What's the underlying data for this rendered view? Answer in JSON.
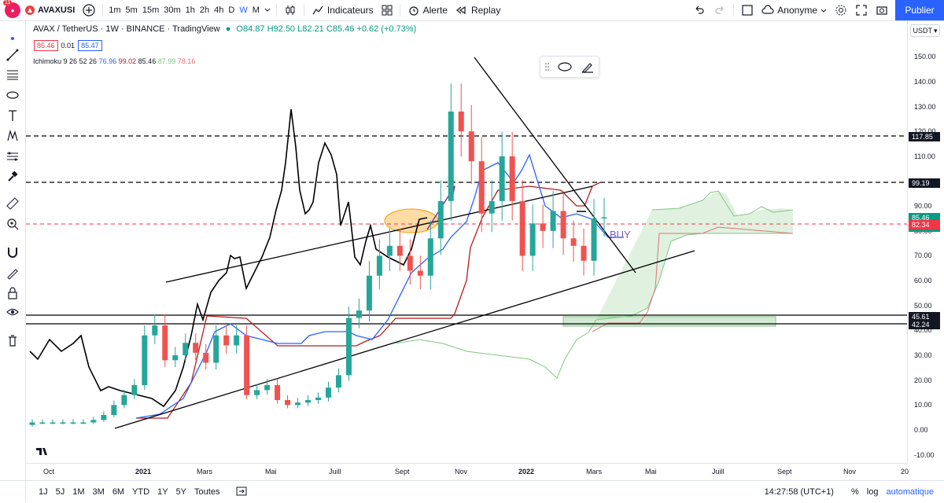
{
  "toolbar": {
    "avatar_badge": "11",
    "symbol": "AVAXUSI",
    "timeframes": [
      "1m",
      "5m",
      "15m",
      "30m",
      "1h",
      "2h",
      "4h",
      "D",
      "W",
      "M"
    ],
    "active_timeframe": "W",
    "indicators_label": "Indicateurs",
    "alert_label": "Alerte",
    "replay_label": "Replay",
    "account_label": "Anonyme",
    "publish_label": "Publier"
  },
  "legend": {
    "pair": "AVAX / TetherUS",
    "interval": "1W",
    "exchange": "BINANCE",
    "source": "TradingView",
    "open": "O84.87",
    "high": "H92.50",
    "low": "L82.21",
    "close": "C85.46",
    "change": "+0.62 (+0.73%)",
    "sell_price": "85.46",
    "spread": "0.01",
    "buy_price": "85.47"
  },
  "ichimoku": {
    "label": "Ichimoku 9 26 52 26",
    "v1": "76.96",
    "v2": "99.02",
    "v3": "85.46",
    "v4": "87.99",
    "v5": "78.16"
  },
  "axis": {
    "currency": "USDT",
    "y_labels": [
      "150.00",
      "140.00",
      "130.00",
      "120.00",
      "110.00",
      "100.00",
      "90.00",
      "80.00",
      "70.00",
      "60.00",
      "50.00",
      "40.00",
      "30.00",
      "20.00",
      "10.00",
      "0.00",
      "-10.00"
    ],
    "x_labels": [
      "Oct",
      "2021",
      "Mars",
      "Mai",
      "Juill",
      "Sept",
      "Nov",
      "2022",
      "Mars",
      "Mai",
      "Juill",
      "Sept",
      "Nov",
      "20"
    ]
  },
  "price_labels": [
    {
      "text": "117.85",
      "color": "#131722"
    },
    {
      "text": "99.19",
      "color": "#131722"
    },
    {
      "text": "85.46",
      "color": "#089981"
    },
    {
      "text": "3d 11h",
      "color": "#089981"
    },
    {
      "text": "82.34",
      "color": "#f23645"
    },
    {
      "text": "45.61",
      "color": "#131722"
    },
    {
      "text": "42.24",
      "color": "#131722"
    }
  ],
  "chart_data": {
    "type": "candlestick",
    "annotation": "BUY",
    "horizontal_levels": [
      117.85,
      99.19,
      82.34,
      45.61,
      42.24
    ],
    "approx_close_series": [
      3,
      3,
      3,
      3,
      3,
      3,
      4,
      6,
      10,
      14,
      18,
      38,
      42,
      28,
      30,
      35,
      31,
      27,
      38,
      34,
      38,
      14,
      16,
      18,
      12,
      10,
      11,
      12,
      13,
      17,
      22,
      45,
      48,
      62,
      70,
      74,
      70,
      64,
      62,
      77,
      92,
      128,
      120,
      108,
      87,
      92,
      110,
      92,
      70,
      83,
      80,
      88,
      77,
      74,
      68,
      85,
      85.46
    ]
  },
  "bottom": {
    "ranges": [
      "1J",
      "5J",
      "1M",
      "3M",
      "6M",
      "YTD",
      "1Y",
      "5Y",
      "Toutes"
    ],
    "time": "14:27:58 (UTC+1)",
    "percent": "%",
    "log": "log",
    "auto": "automatique"
  }
}
